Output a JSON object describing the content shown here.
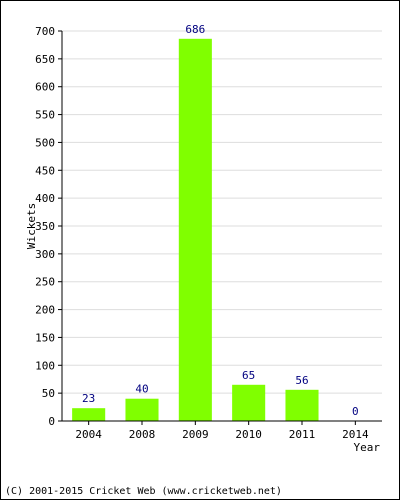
{
  "chart_data": {
    "type": "bar",
    "categories": [
      "2004",
      "2008",
      "2009",
      "2010",
      "2011",
      "2014"
    ],
    "values": [
      23,
      40,
      686,
      65,
      56,
      0
    ],
    "data_labels": [
      "23",
      "40",
      "686",
      "65",
      "56",
      "0"
    ],
    "xlabel": "Year",
    "ylabel": "Wickets",
    "ylim": [
      0,
      700
    ],
    "yticks": [
      "0",
      "50",
      "100",
      "150",
      "200",
      "250",
      "300",
      "350",
      "400",
      "450",
      "500",
      "550",
      "600",
      "650",
      "700"
    ],
    "grid": true,
    "colors": {
      "bar": "#80ff00",
      "label": "#000080",
      "grid": "#dddddd",
      "axis": "#000000"
    }
  },
  "footer": {
    "copyright": "(C) 2001-2015 Cricket Web (www.cricketweb.net)"
  }
}
